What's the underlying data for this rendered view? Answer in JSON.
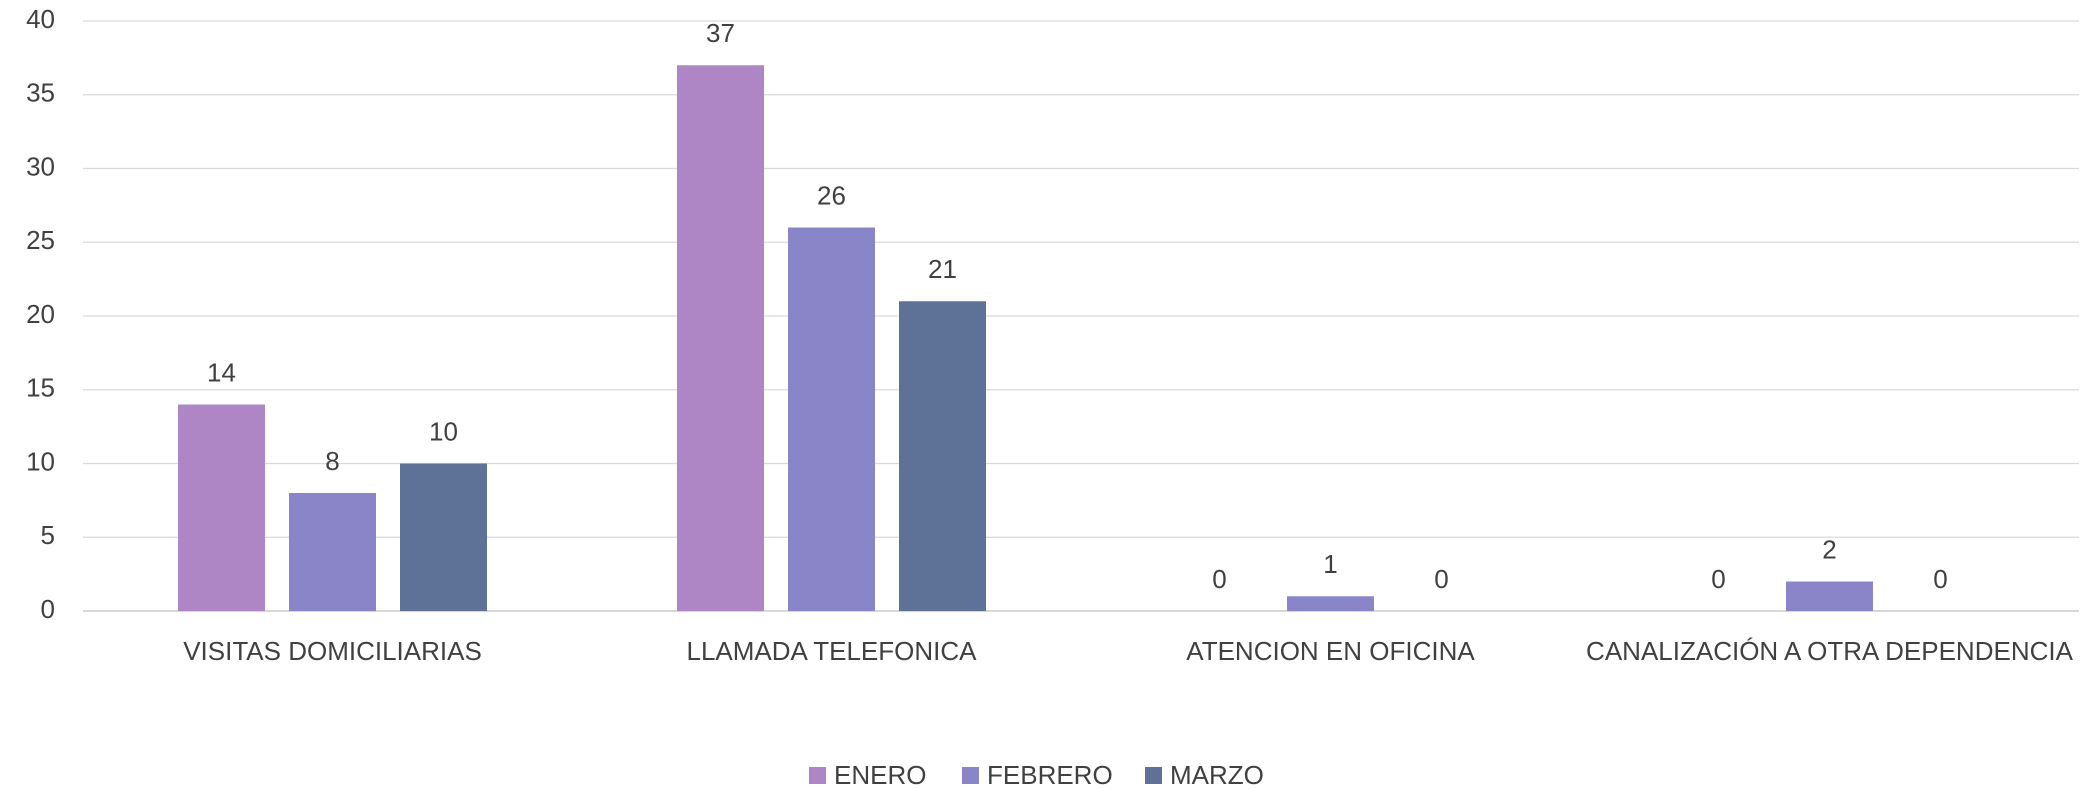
{
  "chart_data": {
    "type": "bar",
    "categories": [
      "VISITAS DOMICILIARIAS",
      "LLAMADA TELEFONICA",
      "ATENCION EN OFICINA",
      "CANALIZACIÓN A OTRA DEPENDENCIA"
    ],
    "series": [
      {
        "name": "ENERO",
        "color": "#ae86c6",
        "values": [
          14,
          37,
          0,
          0
        ]
      },
      {
        "name": "FEBRERO",
        "color": "#8a85c8",
        "values": [
          8,
          26,
          1,
          2
        ]
      },
      {
        "name": "MARZO",
        "color": "#5e7298",
        "values": [
          10,
          21,
          0,
          0
        ]
      }
    ],
    "ylim": [
      0,
      40
    ],
    "yticks": [
      0,
      5,
      10,
      15,
      20,
      25,
      30,
      35,
      40
    ],
    "grid": true,
    "legend": "bottom"
  }
}
